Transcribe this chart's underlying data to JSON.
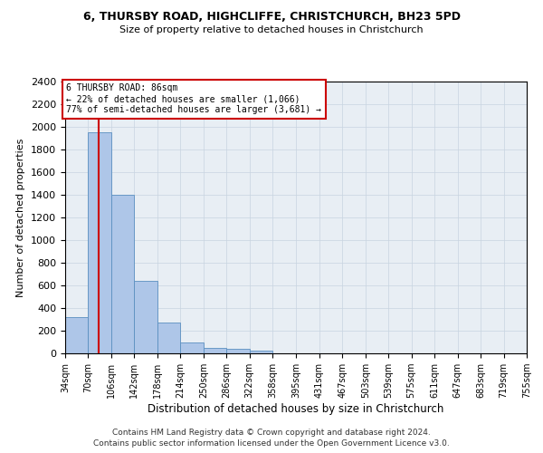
{
  "title_line1": "6, THURSBY ROAD, HIGHCLIFFE, CHRISTCHURCH, BH23 5PD",
  "title_line2": "Size of property relative to detached houses in Christchurch",
  "xlabel": "Distribution of detached houses by size in Christchurch",
  "ylabel": "Number of detached properties",
  "bar_edges": [
    34,
    70,
    106,
    142,
    178,
    214,
    250,
    286,
    322,
    358,
    395,
    431,
    467,
    503,
    539,
    575,
    611,
    647,
    683,
    719,
    755
  ],
  "bar_heights": [
    320,
    1950,
    1400,
    640,
    270,
    100,
    48,
    38,
    25,
    0,
    0,
    0,
    0,
    0,
    0,
    0,
    0,
    0,
    0,
    0
  ],
  "bar_color": "#aec6e8",
  "bar_edge_color": "#5a8fc0",
  "grid_color": "#c8d4e0",
  "bg_color": "#e8eef4",
  "property_line_x": 86,
  "annotation_title": "6 THURSBY ROAD: 86sqm",
  "annotation_line2": "← 22% of detached houses are smaller (1,066)",
  "annotation_line3": "77% of semi-detached houses are larger (3,681) →",
  "annotation_box_color": "#cc0000",
  "property_line_color": "#cc0000",
  "footer_line1": "Contains HM Land Registry data © Crown copyright and database right 2024.",
  "footer_line2": "Contains public sector information licensed under the Open Government Licence v3.0.",
  "ylim": [
    0,
    2400
  ],
  "yticks": [
    0,
    200,
    400,
    600,
    800,
    1000,
    1200,
    1400,
    1600,
    1800,
    2000,
    2200,
    2400
  ],
  "figsize": [
    6.0,
    5.0
  ],
  "dpi": 100
}
